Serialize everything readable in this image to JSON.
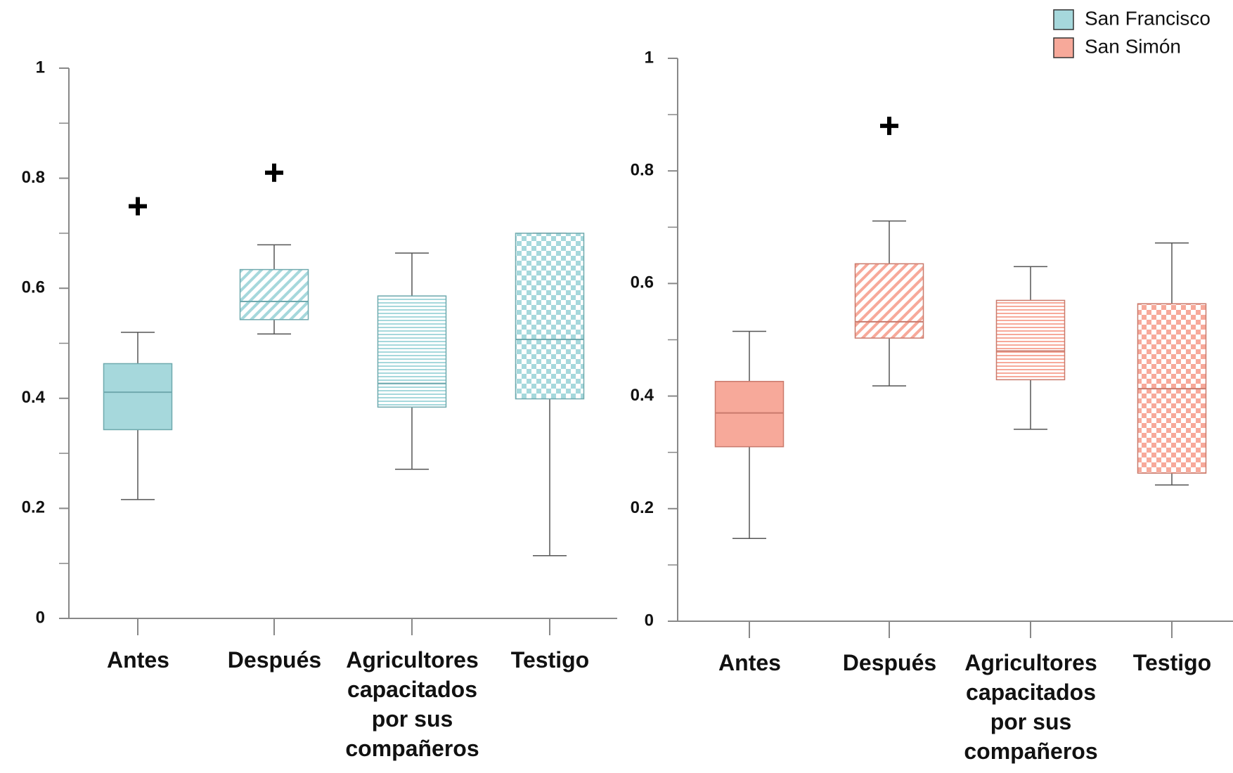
{
  "chart_data": [
    {
      "type": "box",
      "categories": [
        "Antes",
        "Después",
        "Agricultores capacitados por sus compañeros",
        "Testigo"
      ],
      "patterns": [
        "solid",
        "diagonal",
        "horizontal",
        "checker"
      ],
      "series": [
        {
          "name": "San Francisco",
          "color": "#a6d8dc",
          "edge_color": "#6fa9ae",
          "min": [
            0.216,
            0.517,
            0.271,
            0.114
          ],
          "q1": [
            0.343,
            0.543,
            0.384,
            0.399
          ],
          "median": [
            0.411,
            0.576,
            0.427,
            0.507
          ],
          "q3": [
            0.463,
            0.634,
            0.586,
            0.7
          ],
          "max": [
            0.52,
            0.679,
            0.664,
            0.7
          ],
          "outliers": [
            0.749,
            0.81,
            null,
            null
          ]
        }
      ],
      "ylim": [
        0,
        1
      ],
      "yticks": [
        0,
        0.2,
        0.4,
        0.6,
        0.8,
        1
      ],
      "minor_yticks": [
        0.1,
        0.3,
        0.5,
        0.7,
        0.9
      ]
    },
    {
      "type": "box",
      "categories": [
        "Antes",
        "Después",
        "Agricultores capacitados por sus compañeros",
        "Testigo"
      ],
      "patterns": [
        "solid",
        "diagonal",
        "horizontal",
        "checker"
      ],
      "series": [
        {
          "name": "San Simón",
          "color": "#f7a99a",
          "edge_color": "#c97a6c",
          "min": [
            0.147,
            0.418,
            0.341,
            0.242
          ],
          "q1": [
            0.31,
            0.503,
            0.429,
            0.263
          ],
          "median": [
            0.37,
            0.532,
            0.48,
            0.413
          ],
          "q3": [
            0.426,
            0.635,
            0.57,
            0.564
          ],
          "max": [
            0.515,
            0.711,
            0.63,
            0.672
          ],
          "outliers": [
            null,
            0.88,
            null,
            null
          ]
        }
      ],
      "ylim": [
        0,
        1
      ],
      "yticks": [
        0,
        0.2,
        0.4,
        0.6,
        0.8,
        1
      ],
      "minor_yticks": [
        0.1,
        0.3,
        0.5,
        0.7,
        0.9
      ]
    }
  ]
}
